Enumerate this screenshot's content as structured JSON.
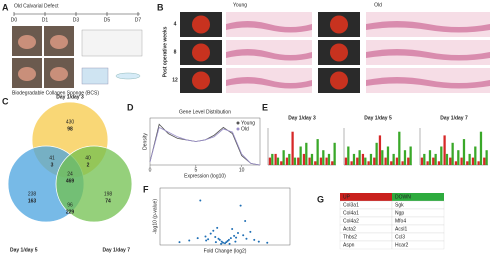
{
  "panel_a": {
    "label": "A",
    "title": "Old Calvarial Defect",
    "timeline": [
      "D0",
      "D1",
      "D3",
      "D5",
      "D7"
    ],
    "caption": "Biodegradable Collagen Sponge (BCS)"
  },
  "panel_b": {
    "label": "B",
    "columns": [
      "Young",
      "Old"
    ],
    "axis_label": "Post operative weeks",
    "rows": [
      "4",
      "8",
      "12"
    ]
  },
  "panel_c": {
    "label": "C",
    "sets": [
      "Day 1/day 3",
      "Day 1/day 5",
      "Day 1/day 7"
    ],
    "regions": [
      [
        "430",
        "98"
      ],
      [
        "238",
        "163"
      ],
      [
        "198",
        "74"
      ],
      [
        "41",
        "3"
      ],
      [
        "40",
        "2"
      ],
      [
        "96",
        "229"
      ],
      [
        "24",
        "469"
      ]
    ]
  },
  "panel_d": {
    "label": "D",
    "chart_data": {
      "type": "line",
      "title": "Gene Level Distribution",
      "x_label": "Expression (log10)",
      "y_label": "Density",
      "x": [
        0,
        1,
        2,
        3,
        4,
        5,
        6,
        7,
        8,
        9,
        10,
        11,
        12
      ],
      "xlim": [
        0,
        12
      ],
      "ylim": [
        0,
        0.3
      ],
      "xticks": [
        0,
        5,
        10
      ],
      "series": [
        {
          "name": "Young",
          "color": "#555555",
          "values": [
            0.02,
            0.26,
            0.2,
            0.17,
            0.16,
            0.15,
            0.16,
            0.19,
            0.24,
            0.2,
            0.06,
            0.01,
            0
          ]
        },
        {
          "name": "Old",
          "color": "#9a8fc9",
          "values": [
            0.02,
            0.24,
            0.21,
            0.18,
            0.16,
            0.15,
            0.16,
            0.18,
            0.23,
            0.21,
            0.07,
            0.01,
            0
          ]
        }
      ]
    }
  },
  "panel_e": {
    "label": "E",
    "charts": [
      {
        "type": "bar",
        "title": "Day 1/day 3",
        "ylim": [
          0,
          10
        ],
        "series": [
          {
            "color": "#d62828",
            "values": [
              2,
              3,
              1,
              2,
              9,
              2,
              3,
              2,
              1,
              2,
              2,
              1
            ]
          },
          {
            "color": "#3aa829",
            "values": [
              3,
              2,
              4,
              3,
              2,
              5,
              6,
              3,
              7,
              4,
              3,
              6
            ]
          }
        ]
      },
      {
        "type": "bar",
        "title": "Day 1/day 5",
        "ylim": [
          0,
          10
        ],
        "series": [
          {
            "color": "#d62828",
            "values": [
              2,
              1,
              2,
              3,
              1,
              2,
              8,
              2,
              1,
              2,
              1,
              2
            ]
          },
          {
            "color": "#3aa829",
            "values": [
              5,
              3,
              4,
              2,
              3,
              6,
              4,
              5,
              3,
              9,
              4,
              5
            ]
          }
        ]
      },
      {
        "type": "bar",
        "title": "Day 1/day 7",
        "ylim": [
          0,
          10
        ],
        "series": [
          {
            "color": "#d62828",
            "values": [
              2,
              1,
              2,
              1,
              8,
              2,
              1,
              2,
              1,
              2,
              1,
              2
            ]
          },
          {
            "color": "#3aa829",
            "values": [
              3,
              4,
              3,
              5,
              3,
              6,
              4,
              7,
              3,
              5,
              9,
              4
            ]
          }
        ]
      }
    ]
  },
  "panel_f": {
    "label": "F",
    "chart_data": {
      "type": "scatter",
      "x_label": "Fold Change (log2)",
      "y_label": "-log10 (p-value)",
      "xlim": [
        -10,
        10
      ],
      "ylim": [
        0,
        10
      ],
      "color": "#1f6fb5",
      "x": [
        -7,
        -5.5,
        -4.2,
        -3.8,
        -3,
        -2.6,
        -2.2,
        -1.8,
        -1.5,
        -1.2,
        -1,
        -0.8,
        -0.5,
        -0.3,
        0,
        0.2,
        0.4,
        0.6,
        0.9,
        1.1,
        1.4,
        1.7,
        2,
        2.4,
        2.8,
        3.3,
        3.9,
        4.5,
        5.2,
        6.5,
        -0.6,
        0.7,
        -1.4,
        1.6,
        -2.9,
        3.1
      ],
      "y": [
        0.5,
        0.8,
        1.2,
        7.8,
        1.5,
        1,
        2,
        2.5,
        1.4,
        3,
        1.1,
        0.9,
        0.6,
        0.4,
        0.3,
        0.5,
        0.7,
        0.9,
        1.2,
        2.8,
        1.6,
        1.3,
        2.1,
        6.9,
        1.7,
        1.1,
        2.3,
        0.9,
        0.6,
        0.4,
        0.2,
        0.2,
        0.5,
        0.6,
        0.8,
        4.2
      ]
    }
  },
  "panel_g": {
    "label": "G",
    "header": [
      "UP",
      "DOWN"
    ],
    "rows": [
      [
        "Col3a1",
        "Sgk"
      ],
      [
        "Col4a1",
        "Ngp"
      ],
      [
        "Col4a2",
        "Mfo4"
      ],
      [
        "Acta2",
        "Acsl1"
      ],
      [
        "Thbs2",
        "Ccl3"
      ],
      [
        "Aspn",
        "Hcar2"
      ]
    ]
  }
}
